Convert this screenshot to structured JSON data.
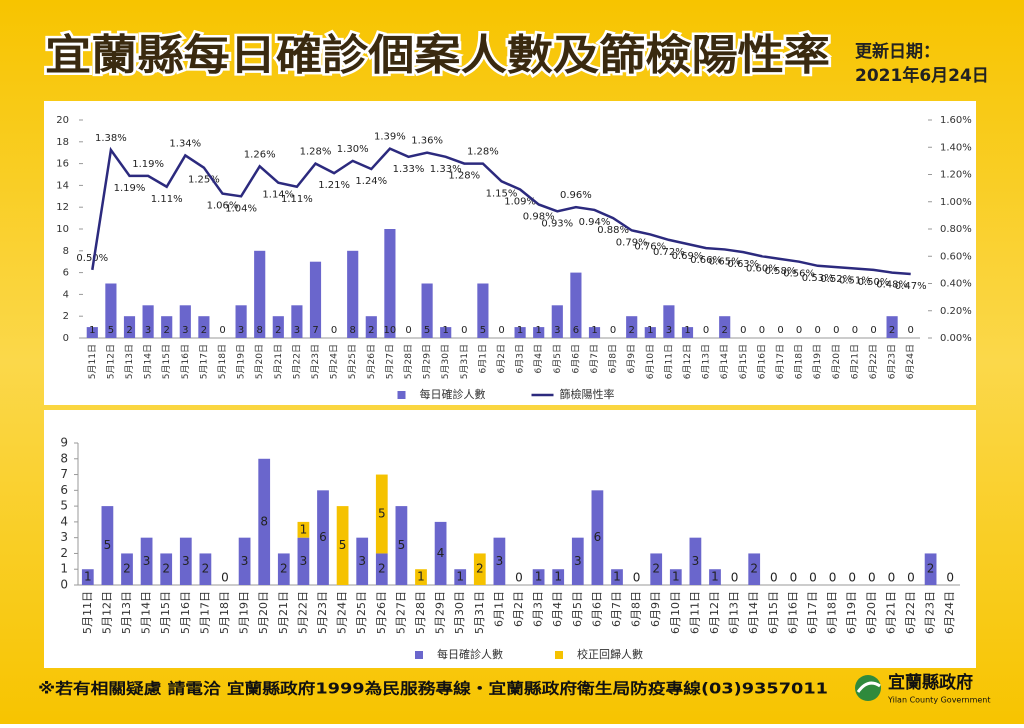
{
  "header": {
    "title": "宜蘭縣每日確診個案人數及篩檢陽性率",
    "update_label": "更新日期：",
    "update_date": "2021年6月24日"
  },
  "chart_data": [
    {
      "type": "bar_line",
      "categories": [
        "5月11日",
        "5月12日",
        "5月13日",
        "5月14日",
        "5月15日",
        "5月16日",
        "5月17日",
        "5月18日",
        "5月19日",
        "5月20日",
        "5月21日",
        "5月22日",
        "5月23日",
        "5月24日",
        "5月25日",
        "5月26日",
        "5月27日",
        "5月28日",
        "5月29日",
        "5月30日",
        "5月31日",
        "6月1日",
        "6月2日",
        "6月3日",
        "6月4日",
        "6月5日",
        "6月6日",
        "6月7日",
        "6月8日",
        "6月9日",
        "6月10日",
        "6月11日",
        "6月12日",
        "6月13日",
        "6月14日",
        "6月15日",
        "6月16日",
        "6月17日",
        "6月18日",
        "6月19日",
        "6月20日",
        "6月21日",
        "6月22日",
        "6月23日",
        "6月24日"
      ],
      "series": [
        {
          "name": "每日確診人數",
          "color": "#6a66cc",
          "values": [
            1,
            5,
            2,
            3,
            2,
            3,
            2,
            0,
            3,
            8,
            2,
            3,
            7,
            0,
            8,
            2,
            10,
            0,
            5,
            1,
            0,
            5,
            0,
            1,
            1,
            3,
            6,
            1,
            0,
            2,
            1,
            3,
            1,
            0,
            2,
            0,
            0,
            0,
            0,
            0,
            0,
            0,
            0,
            2,
            0
          ]
        },
        {
          "name": "篩檢陽性率",
          "color": "#2c2a7e",
          "axis": "y2",
          "values": [
            0.5,
            1.38,
            1.19,
            1.19,
            1.11,
            1.34,
            1.25,
            1.06,
            1.04,
            1.26,
            1.14,
            1.11,
            1.28,
            1.21,
            1.3,
            1.24,
            1.39,
            1.33,
            1.36,
            1.33,
            1.28,
            1.28,
            1.15,
            1.09,
            0.98,
            0.93,
            0.96,
            0.94,
            0.88,
            0.79,
            0.76,
            0.72,
            0.69,
            0.66,
            0.65,
            0.63,
            0.6,
            0.58,
            0.56,
            0.53,
            0.52,
            0.51,
            0.5,
            0.48,
            0.47
          ],
          "value_labels": [
            "0.50%",
            "1.38%",
            "1.19%",
            "1.19%",
            "1.11%",
            "1.34%",
            "1.25%",
            "1.06%",
            "1.04%",
            "1.26%",
            "1.14%",
            "1.11%",
            "1.28%",
            "1.21%",
            "1.30%",
            "1.24%",
            "1.39%",
            "1.33%",
            "1.36%",
            "1.33%",
            "1.28%",
            "1.28%",
            "1.15%",
            "1.09%",
            "0.98%",
            "0.93%",
            "0.96%",
            "0.94%",
            "0.88%",
            "0.79%",
            "0.76%",
            "0.72%",
            "0.69%",
            "0.66%",
            "0.65%",
            "0.63%",
            "0.60%",
            "0.58%",
            "0.56%",
            "0.53%",
            "0.52%",
            "0.51%",
            "0.50%",
            "0.48%",
            "0.47%"
          ]
        }
      ],
      "ylim": [
        0,
        20
      ],
      "yticks": [
        0,
        2,
        4,
        6,
        8,
        10,
        12,
        14,
        16,
        18,
        20
      ],
      "y2lim": [
        0,
        1.6
      ],
      "y2ticks": [
        {
          "value": 0,
          "label": "0.00%"
        },
        {
          "value": 0.2,
          "label": "0.20%"
        },
        {
          "value": 0.4,
          "label": "0.40%"
        },
        {
          "value": 0.6,
          "label": "0.60%"
        },
        {
          "value": 0.8,
          "label": "0.80%"
        },
        {
          "value": 1.0,
          "label": "1.00%"
        },
        {
          "value": 1.2,
          "label": "1.20%"
        },
        {
          "value": 1.4,
          "label": "1.40%"
        },
        {
          "value": 1.6,
          "label": "1.60%"
        }
      ],
      "grid": false,
      "legend": "bottom"
    },
    {
      "type": "stacked_bar",
      "categories": [
        "5月11日",
        "5月12日",
        "5月13日",
        "5月14日",
        "5月15日",
        "5月16日",
        "5月17日",
        "5月18日",
        "5月19日",
        "5月20日",
        "5月21日",
        "5月22日",
        "5月23日",
        "5月24日",
        "5月25日",
        "5月26日",
        "5月27日",
        "5月28日",
        "5月29日",
        "5月30日",
        "5月31日",
        "6月1日",
        "6月2日",
        "6月3日",
        "6月4日",
        "6月5日",
        "6月6日",
        "6月7日",
        "6月8日",
        "6月9日",
        "6月10日",
        "6月11日",
        "6月12日",
        "6月13日",
        "6月14日",
        "6月15日",
        "6月16日",
        "6月17日",
        "6月18日",
        "6月19日",
        "6月20日",
        "6月21日",
        "6月22日",
        "6月23日",
        "6月24日"
      ],
      "series": [
        {
          "name": "每日確診人數",
          "color": "#6a66cc",
          "values": [
            1,
            5,
            2,
            3,
            2,
            3,
            2,
            0,
            3,
            8,
            2,
            3,
            6,
            0,
            3,
            2,
            5,
            0,
            4,
            1,
            0,
            3,
            0,
            1,
            1,
            3,
            6,
            1,
            0,
            2,
            1,
            3,
            1,
            0,
            2,
            0,
            0,
            0,
            0,
            0,
            0,
            0,
            0,
            2,
            0
          ]
        },
        {
          "name": "校正回歸人數",
          "color": "#f5c200",
          "values": [
            null,
            null,
            null,
            null,
            null,
            null,
            null,
            null,
            null,
            null,
            null,
            1,
            null,
            5,
            null,
            5,
            null,
            1,
            null,
            null,
            2,
            null,
            null,
            null,
            null,
            null,
            null,
            null,
            null,
            null,
            null,
            null,
            null,
            null,
            null,
            null,
            null,
            null,
            null,
            null,
            null,
            null,
            null,
            null,
            null
          ]
        }
      ],
      "ylim": [
        0,
        9
      ],
      "yticks": [
        0,
        1,
        2,
        3,
        4,
        5,
        6,
        7,
        8,
        9
      ],
      "grid": false,
      "legend": "bottom"
    }
  ],
  "footer": {
    "note": "※若有相關疑慮 請電洽 宜蘭縣政府1999為民服務專線・宜蘭縣政府衛生局防疫專線(03)9357011",
    "logo_name": "宜蘭縣政府",
    "logo_english": "Yilan County Government"
  }
}
